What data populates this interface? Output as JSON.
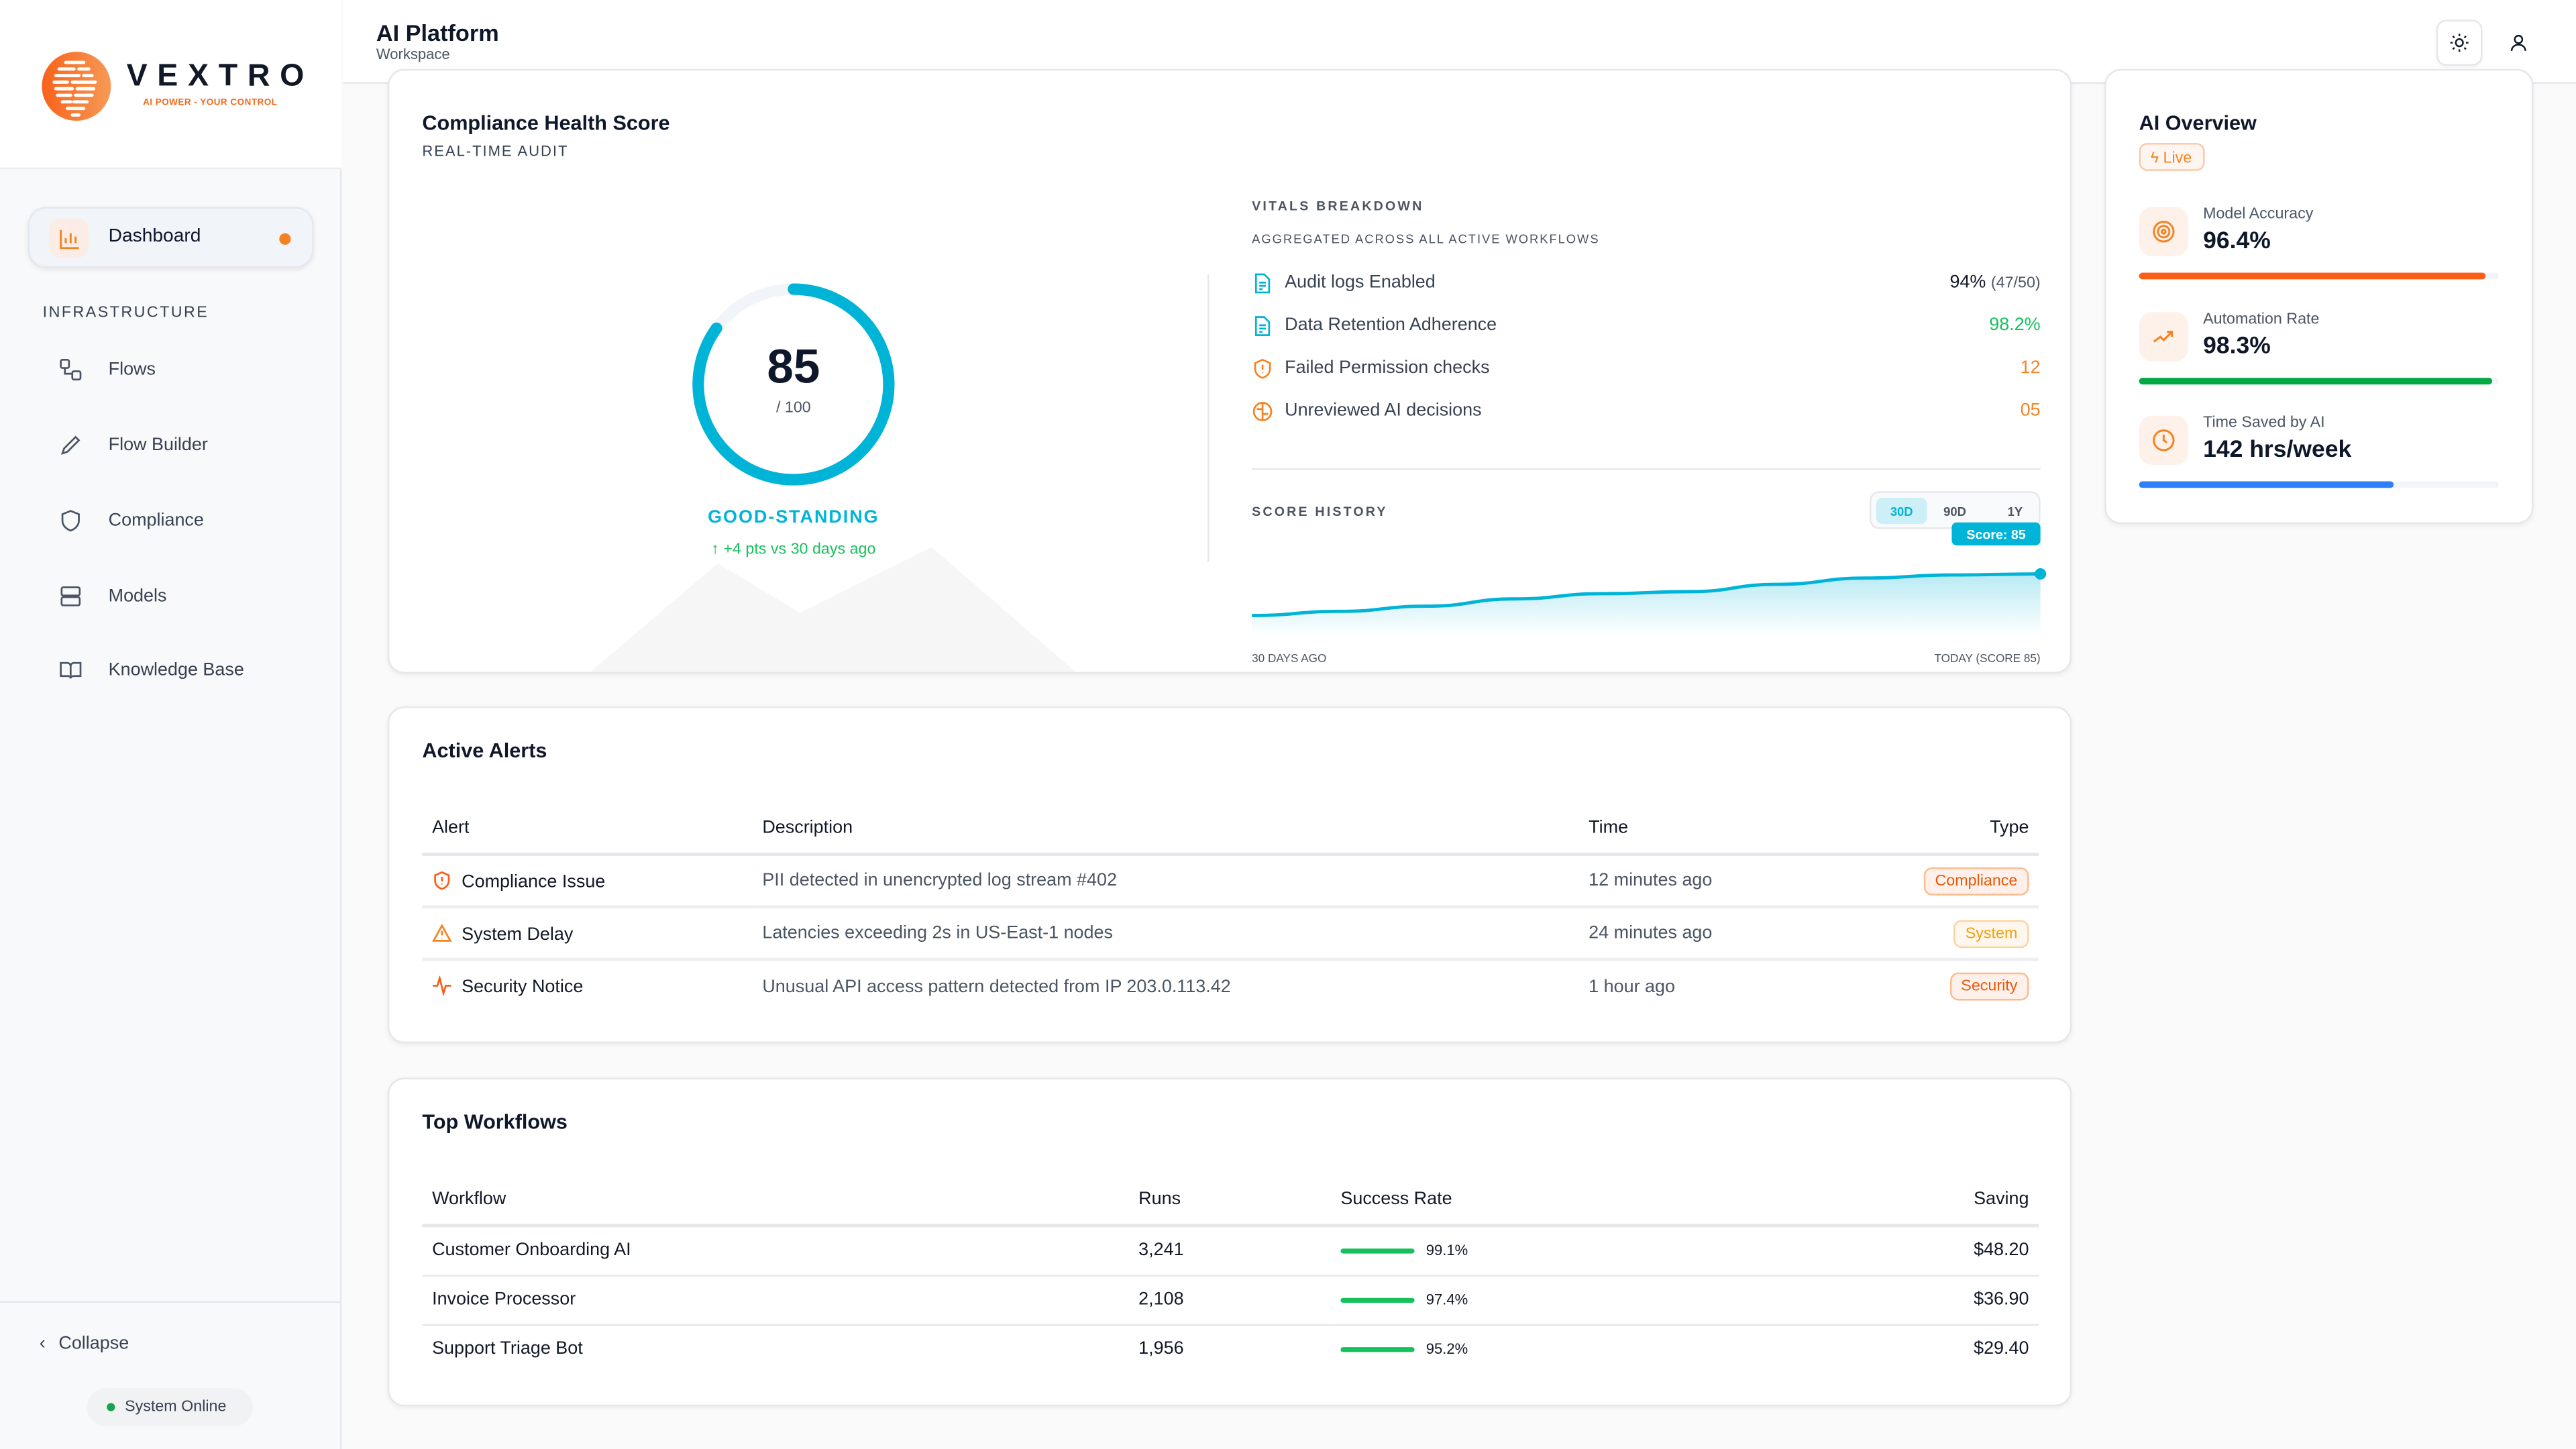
{
  "brand": {
    "name": "VEXTRO",
    "tagline": "AI POWER - YOUR CONTROL"
  },
  "sidebar": {
    "active": {
      "label": "Dashboard",
      "icon": "bar-chart-icon"
    },
    "section": "INFRASTRUCTURE",
    "items": [
      {
        "label": "Flows",
        "icon": "flows-icon"
      },
      {
        "label": "Flow Builder",
        "icon": "pencil-icon"
      },
      {
        "label": "Compliance",
        "icon": "shield-icon"
      },
      {
        "label": "Models",
        "icon": "server-icon"
      },
      {
        "label": "Knowledge Base",
        "icon": "book-icon"
      }
    ],
    "collapse": "Collapse",
    "status": "System Online"
  },
  "header": {
    "title": "AI Platform",
    "subtitle": "Workspace"
  },
  "compliance": {
    "title": "Compliance Health Score",
    "subtitle": "REAL-TIME AUDIT",
    "score": "85",
    "max": "/ 100",
    "score_fraction": 0.85,
    "standing": "GOOD-STANDING",
    "delta": "+4 pts vs 30 days ago",
    "vitals": {
      "title": "VITALS BREAKDOWN",
      "subtitle": "AGGREGATED ACROSS ALL ACTIVE WORKFLOWS",
      "rows": [
        {
          "label": "Audit logs Enabled",
          "value": "94%",
          "extra": "(47/50)",
          "icon": "document-icon"
        },
        {
          "label": "Data Retention Adherence",
          "value": "98.2%",
          "extra": "",
          "icon": "document-icon"
        },
        {
          "label": "Failed Permission checks",
          "value": "12",
          "extra": "",
          "icon": "shield-alert-icon"
        },
        {
          "label": "Unreviewed AI decisions",
          "value": "05",
          "extra": "",
          "icon": "brain-icon"
        }
      ]
    },
    "history": {
      "title": "SCORE HISTORY",
      "ranges": [
        "30D",
        "90D",
        "1Y"
      ],
      "active_range": "30D",
      "tooltip": "Score: 85",
      "start_label": "30 DAYS AGO",
      "end_label": "TODAY (SCORE 85)"
    }
  },
  "chart_data": {
    "type": "area",
    "x": [
      1,
      2,
      3,
      4,
      5,
      6,
      7,
      8,
      9,
      10
    ],
    "values": [
      81,
      81.4,
      81.9,
      82.6,
      83.1,
      83.3,
      84.0,
      84.6,
      84.9,
      85
    ],
    "ylim": [
      80,
      86
    ],
    "grid": false,
    "color": "#00b4d8"
  },
  "alerts": {
    "title": "Active Alerts",
    "columns": [
      "Alert",
      "Description",
      "Time",
      "Type"
    ],
    "rows": [
      {
        "alert": "Compliance Issue",
        "description": "PII detected in unencrypted log stream #402",
        "time": "12 minutes ago",
        "type": "Compliance",
        "icon": "shield-alert-icon"
      },
      {
        "alert": "System Delay",
        "description": "Latencies exceeding 2s in US-East-1 nodes",
        "time": "24 minutes ago",
        "type": "System",
        "icon": "warning-triangle-icon"
      },
      {
        "alert": "Security Notice",
        "description": "Unusual API access pattern detected from IP 203.0.113.42",
        "time": "1 hour ago",
        "type": "Security",
        "icon": "activity-icon"
      }
    ]
  },
  "workflows": {
    "title": "Top Workflows",
    "columns": [
      "Workflow",
      "Runs",
      "Success Rate",
      "Saving"
    ],
    "rows": [
      {
        "name": "Customer Onboarding AI",
        "runs": "3,241",
        "rate": "99.1%",
        "saving": "$48.20"
      },
      {
        "name": "Invoice Processor",
        "runs": "2,108",
        "rate": "97.4%",
        "saving": "$36.90"
      },
      {
        "name": "Support Triage Bot",
        "runs": "1,956",
        "rate": "95.2%",
        "saving": "$29.40"
      }
    ]
  },
  "overview": {
    "title": "AI Overview",
    "badge": "Live",
    "metrics": [
      {
        "label": "Model Accuracy",
        "value": "96.4%",
        "progress": 0.964,
        "color": "#fb5e16",
        "icon": "target-icon"
      },
      {
        "label": "Automation Rate",
        "value": "98.3%",
        "progress": 0.983,
        "color": "#02a844",
        "icon": "trending-up-icon"
      },
      {
        "label": "Time Saved by AI",
        "value": "142 hrs/week",
        "progress": 0.71,
        "color": "#2f80f6",
        "icon": "clock-icon"
      }
    ]
  }
}
